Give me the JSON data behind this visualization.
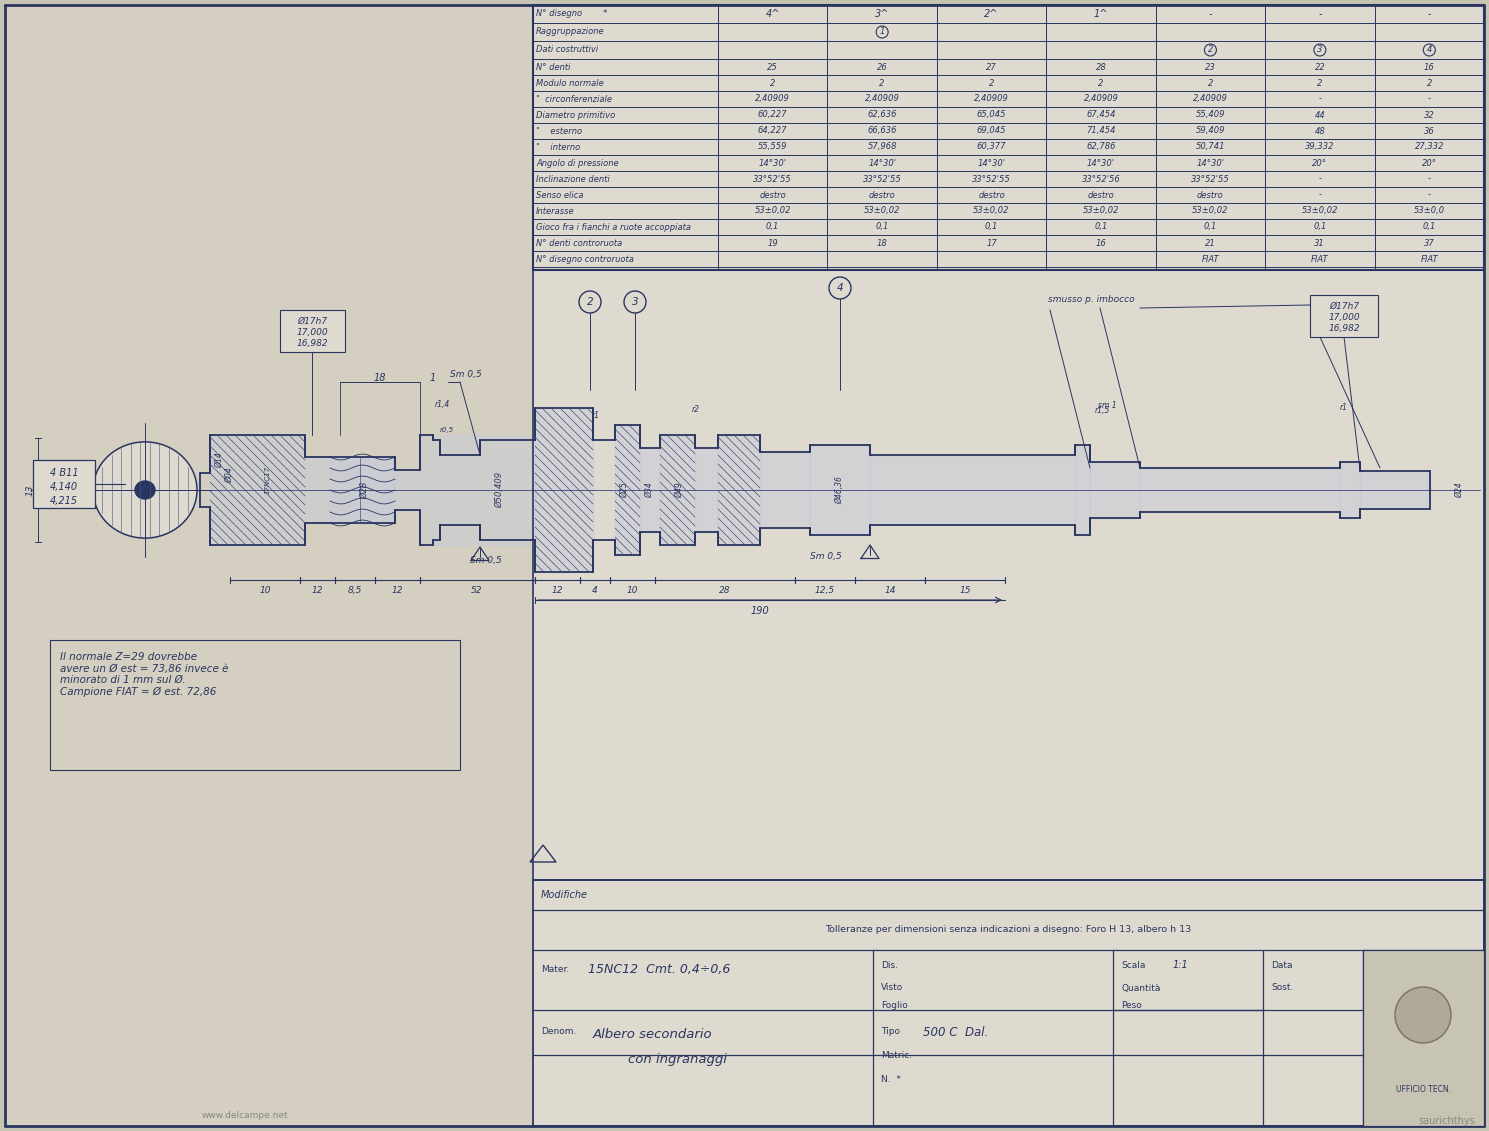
{
  "bg_color": "#c8c4b4",
  "paper_left_color": "#d4cfc0",
  "paper_right_color": "#dedad0",
  "line_color": "#2a3560",
  "title": "Albero secondario",
  "title2": "con ingranaggi",
  "tipo": "500 C  Dal.",
  "mater": "15NC12  Cmt. 0,4÷0,6",
  "scala": "1:1",
  "tolerance_text": "Tolleranze per dimensioni senza indicazioni a disegno: Foro H 13, albero h 13",
  "modifiche": "Modifiche",
  "row_labels": [
    "N° disegno        *",
    "Raggruppazione",
    "Dati costruttivi",
    "N° denti",
    "Modulo normale",
    "\"  circonferenziale",
    "Diametro primitivo",
    "\"    esterno",
    "\"    interno",
    "Angolo di pressione",
    "Inclinazione denti",
    "Senso elica",
    "Interasse",
    "Gioco fra i fianchi a ruote accoppiata",
    "N° denti controruota",
    "N° disegno controruota"
  ],
  "col_headers": [
    "4^",
    "3^",
    "2^",
    "1^",
    "-",
    "-",
    "-"
  ],
  "row_data": [
    [
      "25",
      "26",
      "27",
      "28",
      "23",
      "22",
      "16"
    ],
    [
      "2",
      "2",
      "2",
      "2",
      "2",
      "2",
      "2"
    ],
    [
      "2,40909",
      "2,40909",
      "2,40909",
      "2,40909",
      "2,40909",
      "-",
      "-"
    ],
    [
      "60,227",
      "62,636",
      "65,045",
      "67,454",
      "55,409",
      "44",
      "32"
    ],
    [
      "64,227",
      "66,636",
      "69,045",
      "71,454",
      "59,409",
      "48",
      "36"
    ],
    [
      "55,559",
      "57,968",
      "60,377",
      "62,786",
      "50,741",
      "39,332",
      "27,332"
    ],
    [
      "14°30'",
      "14°30'",
      "14°30'",
      "14°30'",
      "14°30'",
      "20°",
      "20°"
    ],
    [
      "33°52'55",
      "33°52'55",
      "33°52'55",
      "33°52'56",
      "33°52'55",
      "-",
      "-"
    ],
    [
      "destro",
      "destro",
      "destro",
      "destro",
      "destro",
      "-",
      "-"
    ],
    [
      "53±0,02",
      "53±0,02",
      "53±0,02",
      "53±0,02",
      "53±0,02",
      "53±0,02",
      "53±0,0"
    ],
    [
      "0,1",
      "0,1",
      "0,1",
      "0,1",
      "0,1",
      "0,1",
      "0,1"
    ],
    [
      "19",
      "18",
      "17",
      "16",
      "21",
      "31",
      "37"
    ],
    [
      "",
      "",
      "",
      "",
      "FIAT",
      "FIAT",
      "FIAT"
    ]
  ],
  "note_text": "Il normale Z=29 dovrebbe\navere un Ø est = 73,86 invece è\nminorato di 1 mm sul Ø.\nCampione FIAT = Ø est. 72,86",
  "watermark": "www.delcampe.net",
  "credit": "saurichthys"
}
